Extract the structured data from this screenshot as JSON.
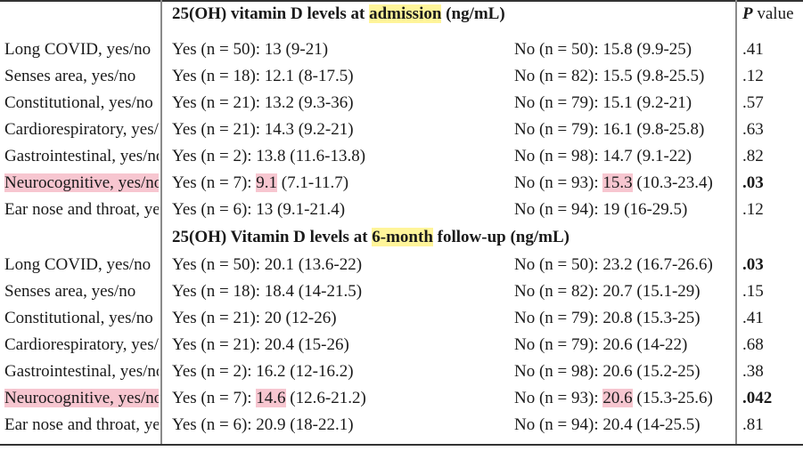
{
  "header1": {
    "title_prefix": "25(OH) vitamin D levels at ",
    "title_highlight": "admission",
    "title_suffix": " (ng/mL)",
    "p_letter": "P",
    "p_rest": " value"
  },
  "section1": {
    "rows": [
      {
        "label": "Long COVID, yes/no",
        "yes_prefix": "Yes (n = 50): ",
        "yes_value": "13",
        "yes_range": " (9-21)",
        "no_prefix": "No (n = 50): ",
        "no_value": "15.8",
        "no_range": " (9.9-25)",
        "p": ".41"
      },
      {
        "label": "Senses area, yes/no",
        "yes_prefix": "Yes (n = 18): ",
        "yes_value": "12.1",
        "yes_range": " (8-17.5)",
        "no_prefix": "No (n = 82): ",
        "no_value": "15.5",
        "no_range": " (9.8-25.5)",
        "p": ".12"
      },
      {
        "label": "Constitutional, yes/no",
        "yes_prefix": "Yes (n = 21): ",
        "yes_value": "13.2",
        "yes_range": " (9.3-36)",
        "no_prefix": "No (n = 79): ",
        "no_value": "15.1",
        "no_range": " (9.2-21)",
        "p": ".57"
      },
      {
        "label": "Cardiorespiratory, yes/no",
        "yes_prefix": "Yes (n = 21): ",
        "yes_value": "14.3",
        "yes_range": " (9.2-21)",
        "no_prefix": "No (n = 79): ",
        "no_value": "16.1",
        "no_range": " (9.8-25.8)",
        "p": ".63"
      },
      {
        "label": "Gastrointestinal, yes/no",
        "yes_prefix": "Yes (n = 2): ",
        "yes_value": "13.8",
        "yes_range": " (11.6-13.8)",
        "no_prefix": "No (n = 98): ",
        "no_value": "14.7",
        "no_range": " (9.1-22)",
        "p": ".82"
      },
      {
        "label": "Neurocognitive, yes/no",
        "yes_prefix": "Yes (n = 7): ",
        "yes_value": "9.1",
        "yes_range": " (7.1-11.7)",
        "no_prefix": "No (n = 93): ",
        "no_value": "15.3",
        "no_range": " (10.3-23.4)",
        "p": ".03"
      },
      {
        "label": "Ear nose and throat, yes/no",
        "yes_prefix": "Yes (n = 6): ",
        "yes_value": "13",
        "yes_range": " (9.1-21.4)",
        "no_prefix": "No (n = 94): ",
        "no_value": "19",
        "no_range": " (16-29.5)",
        "p": ".12"
      }
    ]
  },
  "header2": {
    "title_prefix": "25(OH) Vitamin D levels at ",
    "title_highlight": "6-month",
    "title_suffix": " follow-up (ng/mL)"
  },
  "section2": {
    "rows": [
      {
        "label": "Long COVID, yes/no",
        "yes_prefix": "Yes (n = 50): ",
        "yes_value": "20.1",
        "yes_range": " (13.6-22)",
        "no_prefix": "No (n = 50): ",
        "no_value": "23.2",
        "no_range": " (16.7-26.6)",
        "p": ".03"
      },
      {
        "label": "Senses area, yes/no",
        "yes_prefix": "Yes (n = 18): ",
        "yes_value": "18.4",
        "yes_range": " (14-21.5)",
        "no_prefix": "No (n = 82): ",
        "no_value": "20.7",
        "no_range": " (15.1-29)",
        "p": ".15"
      },
      {
        "label": "Constitutional, yes/no",
        "yes_prefix": "Yes (n = 21): ",
        "yes_value": "20",
        "yes_range": " (12-26)",
        "no_prefix": "No (n = 79): ",
        "no_value": "20.8",
        "no_range": " (15.3-25)",
        "p": ".41"
      },
      {
        "label": "Cardiorespiratory, yes/no",
        "yes_prefix": "Yes (n = 21): ",
        "yes_value": "20.4",
        "yes_range": " (15-26)",
        "no_prefix": "No (n = 79): ",
        "no_value": "20.6",
        "no_range": " (14-22)",
        "p": ".68"
      },
      {
        "label": "Gastrointestinal, yes/no",
        "yes_prefix": "Yes (n = 2): ",
        "yes_value": "16.2",
        "yes_range": " (12-16.2)",
        "no_prefix": "No (n = 98): ",
        "no_value": "20.6",
        "no_range": " (15.2-25)",
        "p": ".38"
      },
      {
        "label": "Neurocognitive, yes/no",
        "yes_prefix": "Yes (n = 7): ",
        "yes_value": "14.6",
        "yes_range": " (12.6-21.2)",
        "no_prefix": "No (n = 93): ",
        "no_value": "20.6",
        "no_range": " (15.3-25.6)",
        "p": ".042"
      },
      {
        "label": "Ear nose and throat, yes/no",
        "yes_prefix": "Yes (n = 6): ",
        "yes_value": "20.9",
        "yes_range": " (18-22.1)",
        "no_prefix": "No (n = 94): ",
        "no_value": "20.4",
        "no_range": " (14-25.5)",
        "p": ".81"
      }
    ]
  },
  "colors": {
    "highlight_yellow": "#fff59a",
    "highlight_pink": "#f7c6d0",
    "rule": "#333333",
    "column_divider": "#8a8a8a"
  }
}
